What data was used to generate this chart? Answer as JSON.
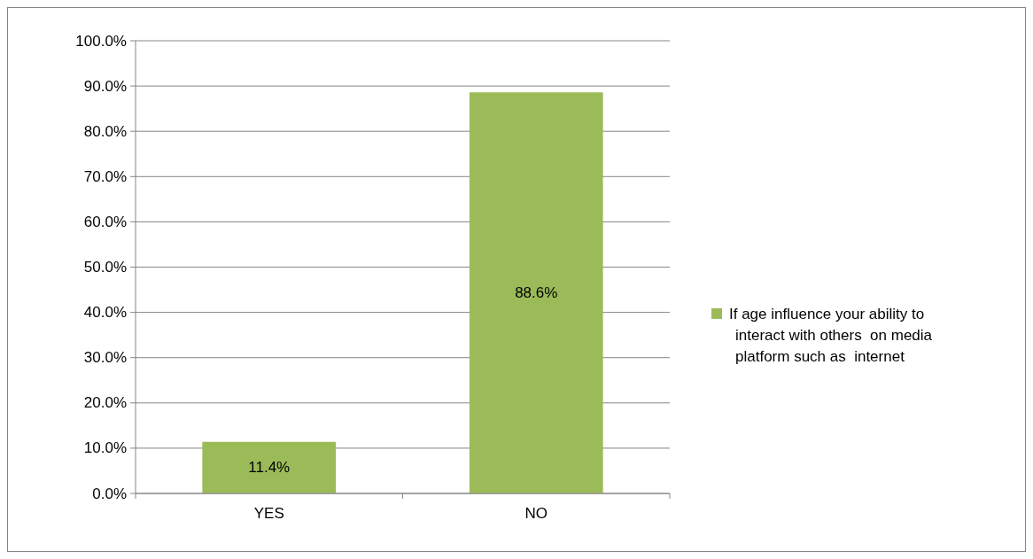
{
  "chart_data": {
    "type": "bar",
    "categories": [
      "YES",
      "NO"
    ],
    "series": [
      {
        "name": "If age influence your ability to interact with others  on media platform such as  internet",
        "color": "#9bbb59",
        "values": [
          11.4,
          88.6
        ],
        "value_labels": [
          "11.4%",
          "88.6%"
        ]
      }
    ],
    "ylim": [
      0,
      100
    ],
    "yticks": [
      {
        "value": 0,
        "label": "0.0%"
      },
      {
        "value": 10,
        "label": "10.0%"
      },
      {
        "value": 20,
        "label": "20.0%"
      },
      {
        "value": 30,
        "label": "30.0%"
      },
      {
        "value": 40,
        "label": "40.0%"
      },
      {
        "value": 50,
        "label": "50.0%"
      },
      {
        "value": 60,
        "label": "60.0%"
      },
      {
        "value": 70,
        "label": "70.0%"
      },
      {
        "value": 80,
        "label": "80.0%"
      },
      {
        "value": 90,
        "label": "90.0%"
      },
      {
        "value": 100,
        "label": "100.0%"
      }
    ],
    "grid": "y",
    "legend": "right"
  }
}
